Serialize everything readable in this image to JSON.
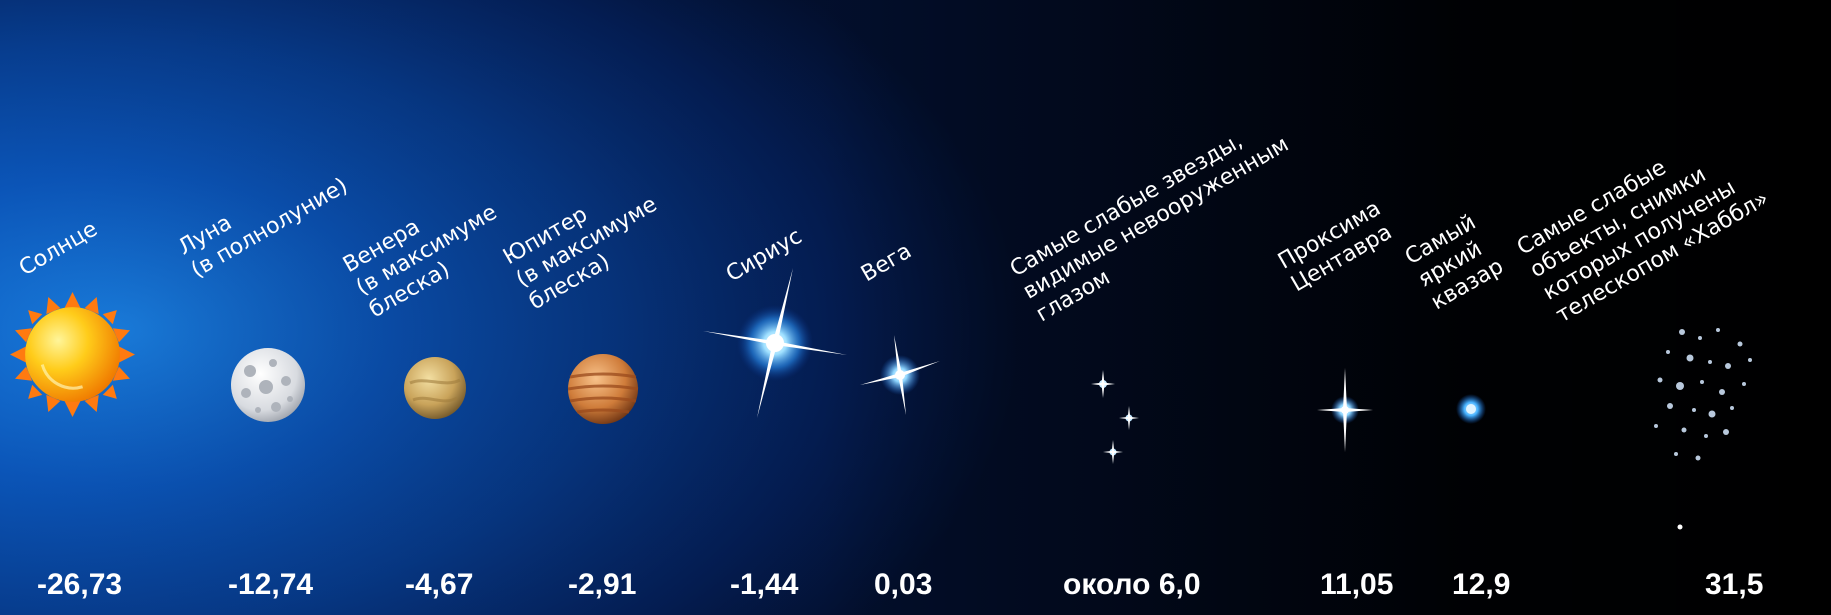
{
  "objects": [
    {
      "label": "Солнце",
      "value": "-26,73",
      "icon": "sun-icon"
    },
    {
      "label": "Луна\n(в полнолуние)",
      "value": "-12,74",
      "icon": "moon-icon"
    },
    {
      "label": "Венера\n(в максимуме\nблеска)",
      "value": "-4,67",
      "icon": "venus-icon"
    },
    {
      "label": "Юпитер\n(в максимуме\nблеска)",
      "value": "-2,91",
      "icon": "jupiter-icon"
    },
    {
      "label": "Сириус",
      "value": "-1,44",
      "icon": "sirius-star-icon"
    },
    {
      "label": "Вега",
      "value": "0,03",
      "icon": "vega-star-icon"
    },
    {
      "label": "Самые слабые звезды,\nвидимые невооруженным\nглазом",
      "value": "около 6,0",
      "icon": "faint-stars-icon"
    },
    {
      "label": "Проксима\nЦентавра",
      "value": "11,05",
      "icon": "proxima-star-icon"
    },
    {
      "label": "Самый\nяркий\nквазар",
      "value": "12,9",
      "icon": "quasar-icon"
    },
    {
      "label": "Самые слабые\nобъекты, снимки\nкоторых получены\nтелескопом «Хаббл»",
      "value": "31,5",
      "icon": "hubble-faint-objects-icon"
    }
  ],
  "colors": {
    "background_left": "#0b55b8",
    "background_right": "#000000",
    "text": "#ffffff"
  }
}
